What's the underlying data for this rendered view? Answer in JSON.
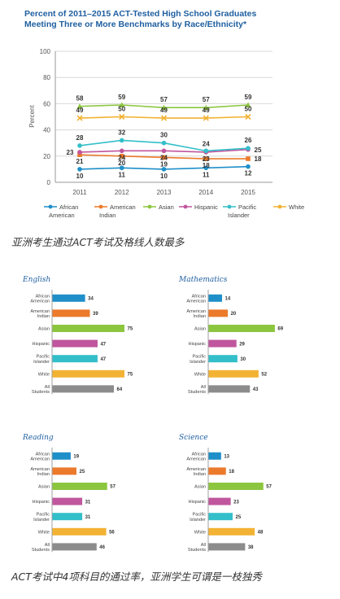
{
  "captions": {
    "top": "亚洲考生通过ACT考试及格线人数最多",
    "bottom": "ACT考试中4项科目的通过率，亚洲学生可谓是一枝独秀"
  },
  "chart_data": [
    {
      "type": "line",
      "title": "Percent of 2011–2015 ACT-Tested High School Graduates",
      "subtitle": "Meeting Three or More Benchmarks by Race/Ethnicity*",
      "ylabel": "Percent",
      "xlabel": "",
      "ylim": [
        0,
        100
      ],
      "yticks": [
        "0",
        "20",
        "40",
        "60",
        "80",
        "100"
      ],
      "x": [
        "2011",
        "2012",
        "2013",
        "2014",
        "2015"
      ],
      "grid": true,
      "legend_position": "bottom",
      "series": [
        {
          "name": "African American",
          "values": [
            10,
            11,
            10,
            11,
            12
          ],
          "labels": [
            "10",
            "11",
            "10",
            "11",
            "12"
          ],
          "color": "#1f8fc9"
        },
        {
          "name": "American Indian",
          "values": [
            21,
            20,
            19,
            18,
            18
          ],
          "labels": [
            "21",
            "20",
            "19",
            "18",
            "18"
          ],
          "color": "#ec7a2b"
        },
        {
          "name": "Asian",
          "values": [
            58,
            59,
            57,
            57,
            59
          ],
          "labels": [
            "58",
            "59",
            "57",
            "57",
            "59"
          ],
          "color": "#8cc63f"
        },
        {
          "name": "Hispanic",
          "values": [
            23,
            24,
            24,
            23,
            25
          ],
          "labels": [
            "23",
            "24",
            "24",
            "23",
            "25"
          ],
          "color": "#c0569d"
        },
        {
          "name": "Pacific Islander",
          "values": [
            28,
            32,
            30,
            24,
            26
          ],
          "labels": [
            "28",
            "32",
            "30",
            "24",
            "26"
          ],
          "color": "#33bfc9"
        },
        {
          "name": "White",
          "values": [
            49,
            50,
            49,
            49,
            50
          ],
          "labels": [
            "49",
            "50",
            "49",
            "49",
            "50"
          ],
          "color": "#f2b233"
        }
      ]
    },
    {
      "type": "bar",
      "orientation": "horizontal",
      "title": "English",
      "categories": [
        "African American",
        "American Indian",
        "Asian",
        "Hispanic",
        "Pacific Islander",
        "White",
        "All Students"
      ],
      "values": [
        34,
        39,
        75,
        47,
        47,
        75,
        64
      ],
      "xlim": [
        0,
        100
      ]
    },
    {
      "type": "bar",
      "orientation": "horizontal",
      "title": "Mathematics",
      "categories": [
        "African American",
        "American Indian",
        "Asian",
        "Hispanic",
        "Pacific Islander",
        "White",
        "All Students"
      ],
      "values": [
        14,
        20,
        69,
        29,
        30,
        52,
        43
      ],
      "xlim": [
        0,
        100
      ]
    },
    {
      "type": "bar",
      "orientation": "horizontal",
      "title": "Reading",
      "categories": [
        "African American",
        "American Indian",
        "Asian",
        "Hispanic",
        "Pacific Islander",
        "White",
        "All Students"
      ],
      "values": [
        19,
        25,
        57,
        31,
        31,
        56,
        46
      ],
      "xlim": [
        0,
        100
      ]
    },
    {
      "type": "bar",
      "orientation": "horizontal",
      "title": "Science",
      "categories": [
        "African American",
        "American Indian",
        "Asian",
        "Hispanic",
        "Pacific Islander",
        "White",
        "All Students"
      ],
      "values": [
        13,
        18,
        57,
        23,
        25,
        48,
        38
      ],
      "xlim": [
        0,
        100
      ]
    }
  ],
  "bar_colors": [
    "#1f8fc9",
    "#ec7a2b",
    "#8cc63f",
    "#c0569d",
    "#33bfc9",
    "#f2b233",
    "#8c8c8c"
  ],
  "label_color": "#555555",
  "title_color": "#1f5fa0"
}
